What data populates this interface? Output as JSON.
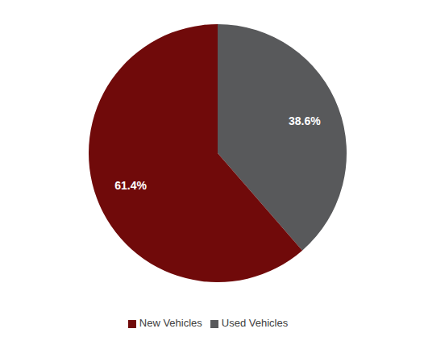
{
  "chart_data": {
    "type": "pie",
    "categories": [
      "Used Vehicles",
      "New Vehicles"
    ],
    "values": [
      38.6,
      61.4
    ],
    "value_labels": [
      "38.6%",
      "61.4%"
    ],
    "colors": [
      "#58595b",
      "#700a0a"
    ],
    "data_labels": true,
    "legend": "bottom"
  }
}
